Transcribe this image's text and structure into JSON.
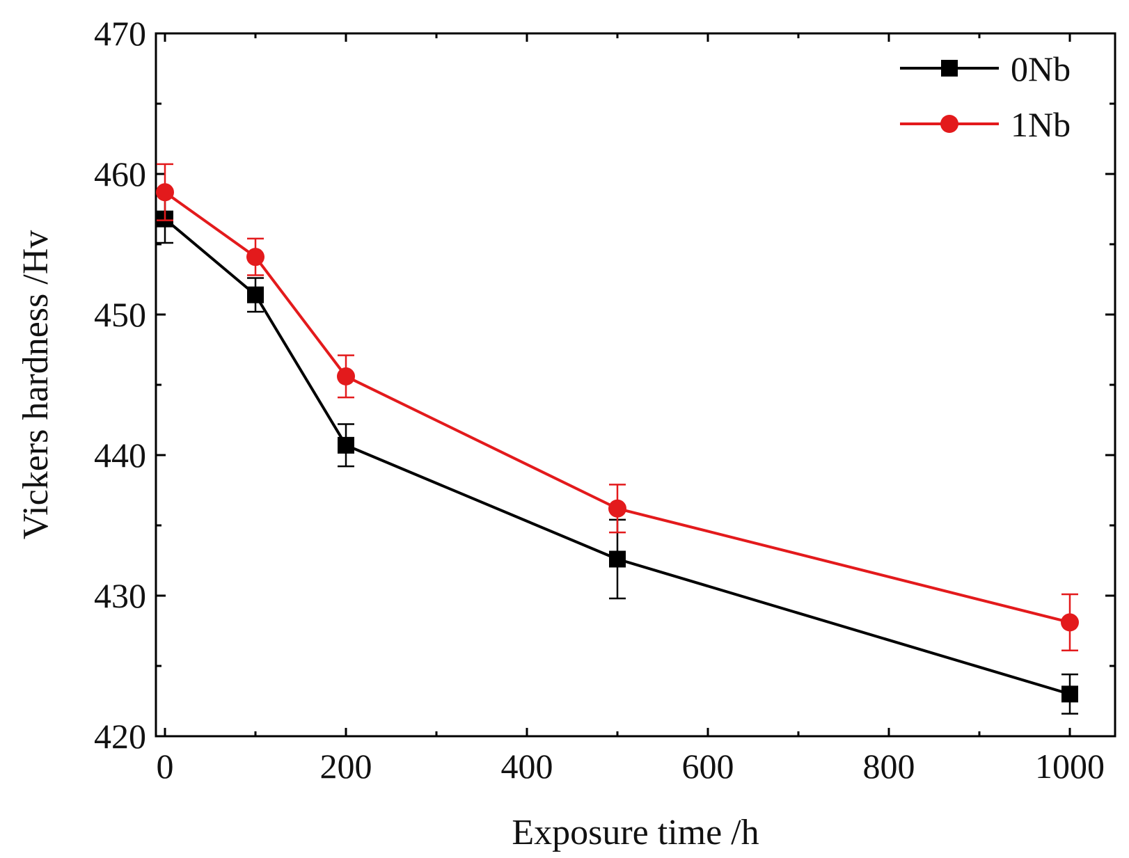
{
  "chart_data": {
    "type": "line",
    "title": "",
    "xlabel": "Exposure time /h",
    "ylabel": "Vickers hardness /Hv",
    "xlim": [
      -10,
      1050
    ],
    "ylim": [
      420,
      470
    ],
    "xticks": [
      0,
      200,
      400,
      600,
      800,
      1000
    ],
    "xtick_labels": [
      "0",
      "200",
      "400",
      "600",
      "800",
      "1000"
    ],
    "x_minor_ticks": [
      100,
      300,
      500,
      700,
      900
    ],
    "yticks": [
      420,
      430,
      440,
      450,
      460,
      470
    ],
    "ytick_labels": [
      "420",
      "430",
      "440",
      "450",
      "460",
      "470"
    ],
    "y_minor_ticks": [
      425,
      435,
      445,
      455,
      465
    ],
    "grid": false,
    "legend_position": "top-right",
    "x": [
      0,
      100,
      200,
      500,
      1000
    ],
    "series": [
      {
        "name": "0Nb",
        "marker": "square",
        "color": "#000000",
        "values": [
          456.8,
          451.4,
          440.7,
          432.6,
          423.0
        ],
        "errors": [
          1.7,
          1.2,
          1.5,
          2.8,
          1.4
        ]
      },
      {
        "name": "1Nb",
        "marker": "circle",
        "color": "#e31a1c",
        "values": [
          458.7,
          454.1,
          445.6,
          436.2,
          428.1
        ],
        "errors": [
          2.0,
          1.3,
          1.5,
          1.7,
          2.0
        ]
      }
    ]
  }
}
